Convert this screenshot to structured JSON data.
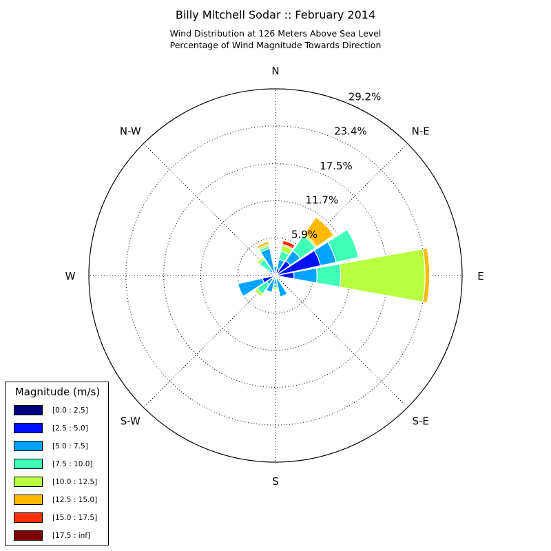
{
  "title": "Billy Mitchell Sodar :: February 2014",
  "subtitle_line1": "Wind Distribution at 126 Meters Above Sea Level",
  "subtitle_line2": "Percentage of Wind Magnitude Towards Direction",
  "chart_data": {
    "type": "windrose",
    "directions": [
      "E",
      "ENE",
      "NE",
      "NNE",
      "N",
      "NNW",
      "NW",
      "WNW",
      "W",
      "WSW",
      "SW",
      "SSW",
      "S",
      "SSE",
      "SE",
      "ESE"
    ],
    "direction_angles_deg": [
      90,
      67.5,
      45,
      22.5,
      0,
      337.5,
      315,
      292.5,
      270,
      247.5,
      225,
      202.5,
      180,
      157.5,
      135,
      112.5
    ],
    "compass_labels": [
      "N",
      "N-E",
      "E",
      "S-E",
      "S",
      "S-W",
      "W",
      "N-W"
    ],
    "radial_tick_labels": [
      "5.9%",
      "11.7%",
      "17.5%",
      "23.4%",
      "29.2%"
    ],
    "radial_ticks": [
      5.9,
      11.7,
      17.5,
      23.4,
      29.2
    ],
    "rmax": 29.2,
    "grid": true,
    "legend_title": "Magnitude (m/s)",
    "legend_position": "lower-left",
    "bins": [
      "[0.0 : 2.5]",
      "[2.5 : 5.0]",
      "[5.0 : 7.5]",
      "[7.5 : 10.0]",
      "[10.0 : 12.5]",
      "[12.5 : 15.0]",
      "[15.0 : 17.5]",
      "[17.5 : inf]"
    ],
    "bin_colors": [
      "#00007f",
      "#0010ff",
      "#00a4ff",
      "#40ffb7",
      "#b7ff40",
      "#ffb900",
      "#ff3000",
      "#7f0000"
    ],
    "series": [
      {
        "direction": "E",
        "values": [
          0.3,
          2.6,
          3.6,
          3.7,
          13.2,
          0.7,
          0,
          0
        ]
      },
      {
        "direction": "ENE",
        "values": [
          0.3,
          6.9,
          2.5,
          3.6,
          0,
          0,
          0,
          0
        ]
      },
      {
        "direction": "NE",
        "values": [
          0.5,
          2.3,
          1.9,
          2.9,
          0.3,
          3.2,
          0,
          0
        ]
      },
      {
        "direction": "NNE",
        "values": [
          0.2,
          0.9,
          1.5,
          1.3,
          0.9,
          0.2,
          0.6,
          0
        ]
      },
      {
        "direction": "N",
        "values": [
          0.1,
          0.5,
          0.8,
          0,
          0,
          0,
          0,
          0
        ]
      },
      {
        "direction": "NNW",
        "values": [
          0.2,
          0.6,
          3.5,
          0.4,
          0.3,
          0.4,
          0,
          0
        ]
      },
      {
        "direction": "NW",
        "values": [
          0.2,
          0.5,
          0.6,
          1.8,
          0.4,
          0,
          0,
          0
        ]
      },
      {
        "direction": "WNW",
        "values": [
          0.1,
          0.4,
          0.4,
          0,
          0,
          0,
          0,
          0
        ]
      },
      {
        "direction": "W",
        "values": [
          0.1,
          0.3,
          0,
          0,
          0,
          0,
          0,
          0
        ]
      },
      {
        "direction": "WSW",
        "values": [
          0.2,
          1.9,
          3.9,
          0,
          0,
          0,
          0,
          0
        ]
      },
      {
        "direction": "SW",
        "values": [
          0.2,
          0.5,
          1.0,
          1.8,
          0.5,
          0,
          0,
          0
        ]
      },
      {
        "direction": "SSW",
        "values": [
          0.2,
          0.5,
          2.0,
          0,
          0,
          0,
          0,
          0
        ]
      },
      {
        "direction": "S",
        "values": [
          0.1,
          0.4,
          0.9,
          0.5,
          0.3,
          0,
          0,
          0
        ]
      },
      {
        "direction": "SSE",
        "values": [
          0.1,
          0.4,
          2.9,
          0,
          0,
          0,
          0,
          0
        ]
      },
      {
        "direction": "SE",
        "values": [
          0,
          0,
          0,
          0,
          0,
          0,
          0,
          0
        ]
      },
      {
        "direction": "ESE",
        "values": [
          0.1,
          0.4,
          0.3,
          0,
          0,
          0,
          0,
          0
        ]
      }
    ]
  }
}
